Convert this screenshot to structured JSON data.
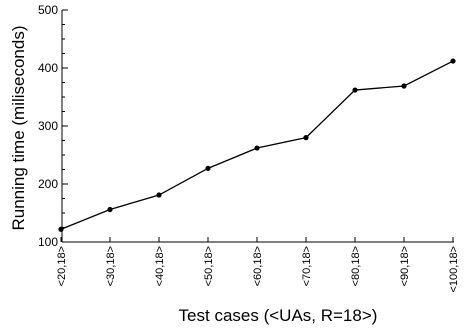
{
  "chart_data": {
    "type": "line",
    "xlabel": "Test cases (<UAs, R=18>)",
    "ylabel": "Running time (miliseconds)",
    "ylim": [
      100,
      500
    ],
    "yticks": [
      100,
      200,
      300,
      400,
      500
    ],
    "categories": [
      "<20,18>",
      "<30,18>",
      "<40,18>",
      "<50,18>",
      "<60,18>",
      "<70,18>",
      "<80,18>",
      "<90,18>",
      "<100,18>"
    ],
    "series": [
      {
        "values": [
          122,
          156,
          181,
          227,
          262,
          280,
          362,
          369,
          412
        ]
      }
    ],
    "grid": false,
    "legend": "none",
    "colors": {
      "line": "#000000",
      "marker": "#000000",
      "axis": "#000000"
    }
  }
}
